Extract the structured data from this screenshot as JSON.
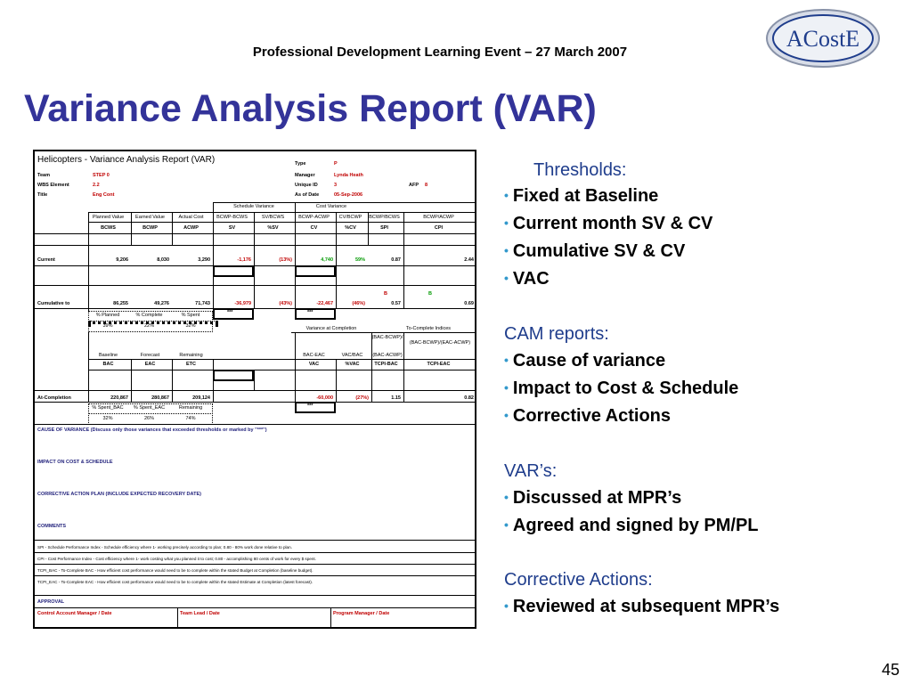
{
  "header": {
    "event": "Professional Development Learning Event – 27 March 2007",
    "logo_text": "ACostE",
    "page_number": "45"
  },
  "slide_title": "Variance Analysis Report (VAR)",
  "form": {
    "title": "Helicopters - Variance Analysis Report (VAR)",
    "team_label": "Team",
    "team_value": "STEP 0",
    "wbs_label": "WBS Element",
    "wbs_value": "2.2",
    "title_label": "Title",
    "title_value": "Eng Cont",
    "type_label": "Type",
    "type_value": "P",
    "manager_label": "Manager",
    "manager_value": "Lynda Heath",
    "unique_label": "Unique ID",
    "unique_value": "3",
    "asof_label": "As of Date",
    "asof_value": "05-Sep-2006",
    "afp_label": "AFP",
    "afp_value": "8",
    "schedule_variance": "Schedule Variance",
    "cost_variance": "Cost Variance",
    "col_headers_top": [
      "Planned Value",
      "Earned Value",
      "Actual Cost",
      "BCWP-BCWS",
      "SV/BCWS",
      "BCWP-ACWP",
      "CV/BCWP",
      "BCWP/BCWS",
      "BCWP/ACWP"
    ],
    "col_headers": [
      "BCWS",
      "BCWP",
      "ACWP",
      "SV",
      "%SV",
      "CV",
      "%CV",
      "SPI",
      "CPI"
    ],
    "current_label": "Current",
    "current_values": [
      "9,206",
      "8,030",
      "3,290",
      "-1,176",
      "(13%)",
      "4,740",
      "59%",
      "0.87",
      "2.44"
    ],
    "cumulative_label": "Cumulative to",
    "cumulative_values": [
      "86,255",
      "49,276",
      "71,743",
      "-36,979",
      "(43%)",
      "-22,467",
      "(46%)",
      "0.57",
      "0.69"
    ],
    "flags": [
      "B",
      "B"
    ],
    "stars": [
      "***",
      "***",
      "***"
    ],
    "pct_headers": [
      "% Planned",
      "% Complete",
      "% Spent"
    ],
    "pct_values": [
      "39%",
      "22%",
      "32%"
    ],
    "vac_header": "Variance at Completion",
    "tci_header": "To-Complete Indices",
    "tci_sub1": "(BAC-BCWP)/",
    "tci_sub1b": "(BAC-ACWP)",
    "tci_sub2": "(BAC-BCWP)/(EAC-ACWP)",
    "completion_top": [
      "Baseline",
      "Forecast",
      "Remaining",
      "BAC-EAC",
      "VAC/BAC"
    ],
    "completion_headers": [
      "BAC",
      "EAC",
      "ETC",
      "VAC",
      "%VAC",
      "TCPI-BAC",
      "TCPI-EAC"
    ],
    "atc_label": "At-Completion",
    "atc_values": [
      "220,867",
      "280,867",
      "209,124",
      "-60,000",
      "(27%)",
      "1.15",
      "0.82"
    ],
    "pct2_headers": [
      "% Spent_BAC",
      "% Spent_EAC",
      "Remaining"
    ],
    "pct2_values": [
      "32%",
      "26%",
      "74%"
    ],
    "cause": "CAUSE OF VARIANCE (Discuss only those variances that exceeded thresholds or marked by \"***\")",
    "impact": "IMPACT ON COST & SCHEDULE",
    "corrective": "CORRECTIVE ACTION PLAN (INCLUDE EXPECTED RECOVERY DATE)",
    "comments": "COMMENTS",
    "notes": [
      "SPI - Schedule Performance Index - Schedule efficiency where 1- working precisely according to plan; 0.80 - 80% work done relative to plan.",
      "CPI - Cost Performance Index - Cost efficiency where 1- work costing what you planned it to cost; 0.80 - accomplishing 80 cents of work for every $ spent.",
      "TCPI_BAC - To-Complete BAC - How efficient cost performance would need to be to complete within the stated Budget at Completion (baseline budget).",
      "TCPI_EAC - To-Complete EAC - How efficient cost performance would need to be to complete within the stated Estimate at Completion (latest forecast)."
    ],
    "approval": "APPROVAL",
    "sig1": "Control Account Manager / Date",
    "sig2": "Team Lead / Date",
    "sig3": "Program Manager / Date"
  },
  "panel": {
    "thresholds": "Thresholds:",
    "threshold_items": [
      "Fixed at Baseline",
      "Current month SV & CV",
      "Cumulative SV & CV",
      "VAC"
    ],
    "cam": "CAM reports:",
    "cam_items": [
      "Cause of variance",
      "Impact to Cost & Schedule",
      "Corrective Actions"
    ],
    "var": "VAR’s:",
    "var_items": [
      "Discussed at MPR’s",
      "Agreed and signed by PM/PL"
    ],
    "ca": "Corrective Actions:",
    "ca_items": [
      "Reviewed at subsequent MPR’s"
    ],
    "heading_color": "#1f3d8c",
    "bullet_color": "#3399cc"
  }
}
